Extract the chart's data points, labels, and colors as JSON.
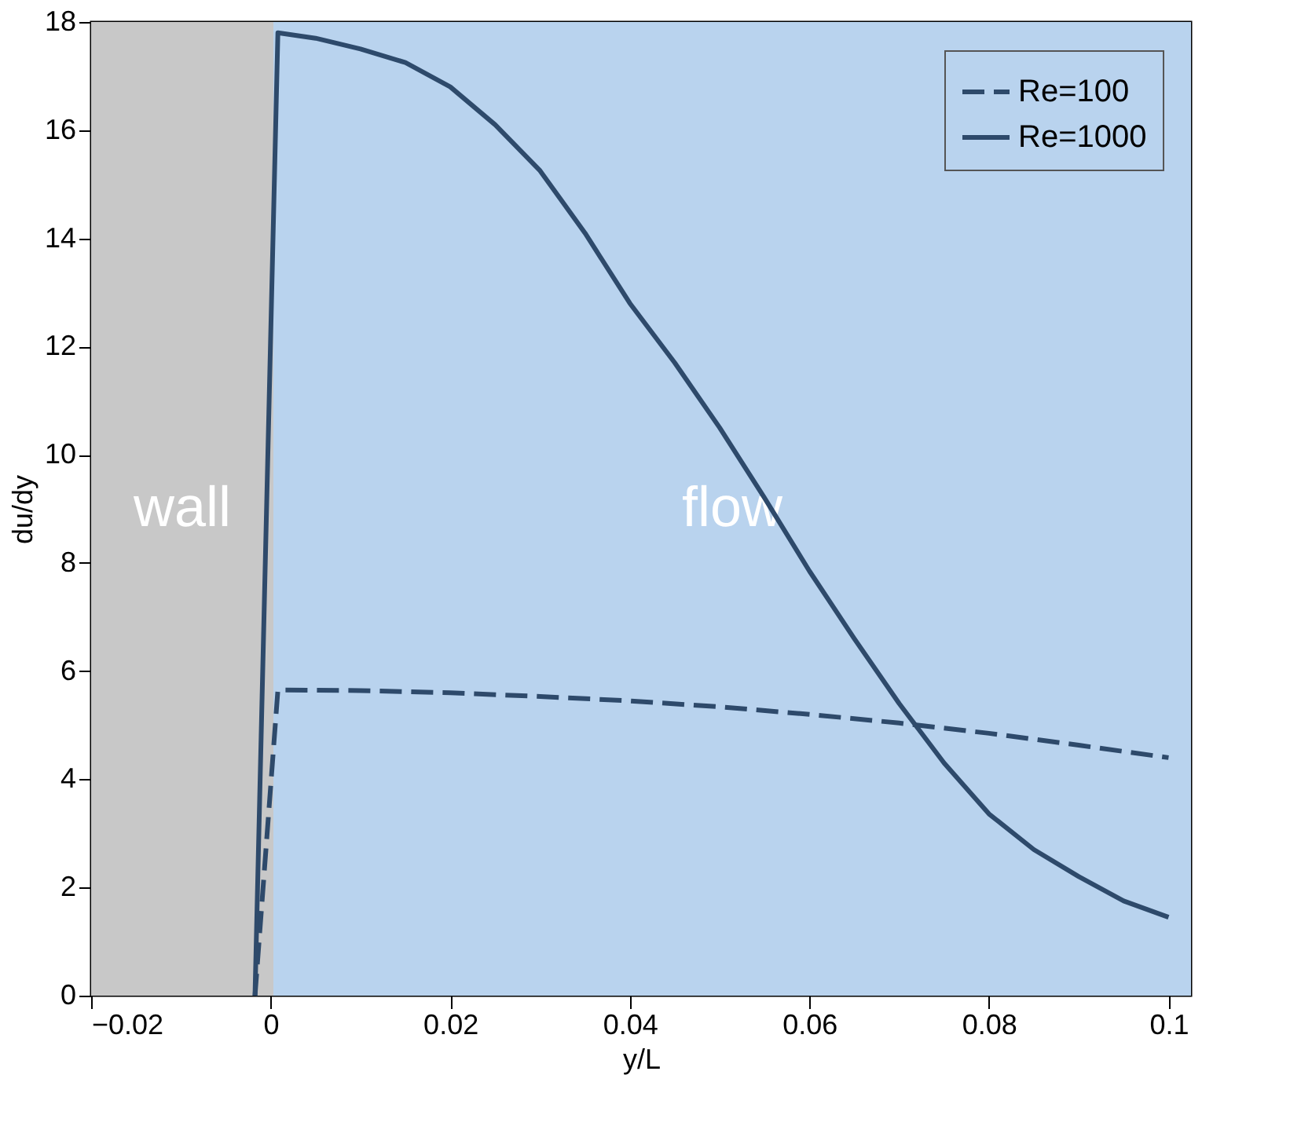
{
  "chart_data": {
    "type": "line",
    "xlabel": "y/L",
    "ylabel": "du/dy",
    "xlim": [
      -0.02,
      0.1025
    ],
    "ylim": [
      0,
      18
    ],
    "xticks": [
      {
        "value": -0.02,
        "label": "−0.02"
      },
      0,
      0.02,
      0.04,
      0.06,
      0.08,
      0.1
    ],
    "yticks": [
      0,
      2,
      4,
      6,
      8,
      10,
      12,
      14,
      16,
      18
    ],
    "grid": false,
    "legend": "top right",
    "marker": "none",
    "bands": [
      {
        "axis": "x",
        "from": -0.02,
        "to": 0.0003,
        "label": "wall",
        "color": "#c8c8c8"
      },
      {
        "axis": "x",
        "from": 0.0003,
        "to": 0.1025,
        "label": "flow",
        "color": "#b9d3ee"
      }
    ],
    "series": [
      {
        "name": "Re=100",
        "color": "#2e4a6b",
        "line_style": "dashed",
        "x": [
          -0.00175,
          0.0008,
          0.01,
          0.02,
          0.03,
          0.04,
          0.05,
          0.06,
          0.07,
          0.08,
          0.09,
          0.1
        ],
        "values": [
          0,
          5.65,
          5.64,
          5.6,
          5.53,
          5.45,
          5.34,
          5.2,
          5.04,
          4.85,
          4.63,
          4.4
        ]
      },
      {
        "name": "Re=1000",
        "color": "#2e4a6b",
        "line_style": "solid",
        "x": [
          -0.00175,
          0.0008,
          0.005,
          0.01,
          0.015,
          0.02,
          0.025,
          0.03,
          0.035,
          0.04,
          0.045,
          0.05,
          0.055,
          0.06,
          0.065,
          0.07,
          0.075,
          0.08,
          0.085,
          0.09,
          0.095,
          0.1
        ],
        "values": [
          0,
          17.8,
          17.7,
          17.5,
          17.25,
          16.8,
          16.1,
          15.25,
          14.1,
          12.8,
          11.7,
          10.5,
          9.2,
          7.85,
          6.6,
          5.4,
          4.3,
          3.36,
          2.7,
          2.2,
          1.75,
          1.45
        ]
      }
    ]
  }
}
